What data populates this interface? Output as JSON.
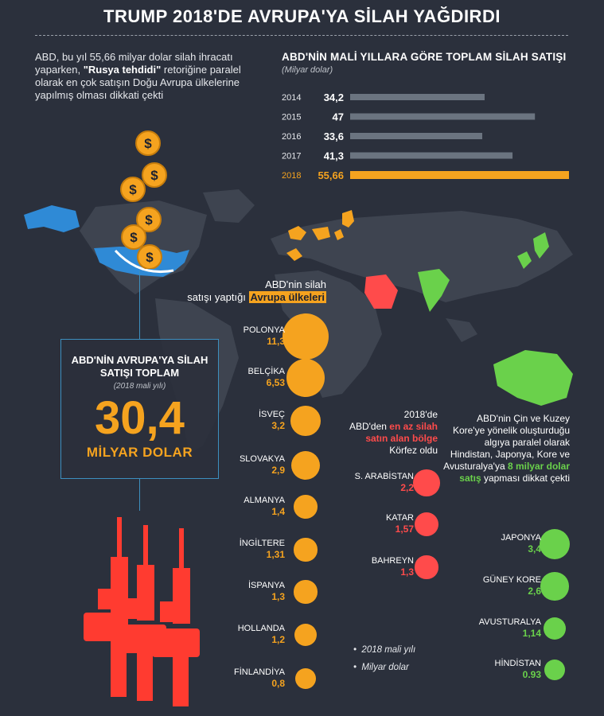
{
  "title": "TRUMP 2018'DE AVRUPA'YA SİLAH YAĞDIRDI",
  "intro": {
    "part1": "ABD, bu yıl 55,66 milyar dolar silah ihracatı yaparken, ",
    "bold": "\"Rusya tehdidi\"",
    "part2": " retoriğine paralel olarak en çok satışın Doğu Avrupa ülkelerine yapılmış olması dikkati çekti"
  },
  "colors": {
    "background": "#2b303c",
    "orange": "#f5a31f",
    "red": "#ff4b4b",
    "green": "#6ad14b",
    "grey_bar": "#6b7480",
    "blue": "#3d8fbf",
    "land": "#3e4450"
  },
  "total_box": {
    "heading": "ABD'NİN AVRUPA'YA SİLAH SATIŞI TOPLAM",
    "period": "(2018 mali yılı)",
    "value": "30,4",
    "unit": "MİLYAR DOLAR"
  },
  "europe_label": {
    "line1": "ABD'nin silah",
    "line2": "satışı yaptığı ",
    "highlight": "Avrupa ülkeleri"
  },
  "gulf_label": {
    "line1": "2018'de",
    "line2": "ABD'den ",
    "highlight": "en az silah satın alan bölge",
    "line3": "Körfez oldu"
  },
  "asia_label": {
    "part1": "ABD'nin Çin ve Kuzey Kore'ye yönelik oluşturduğu algıya paralel olarak Hindistan, Japonya, Kore ve Avusturalya'ya ",
    "highlight": "8 milyar dolar satış",
    "part2": " yapması dikkat çekti"
  },
  "notes": [
    "2018 mali yılı",
    "Milyar dolar"
  ],
  "chart_data": [
    {
      "type": "bar",
      "orientation": "horizontal",
      "title": "ABD'NİN MALİ YILLARA GÖRE TOPLAM SİLAH SATIŞI",
      "subtitle": "(Milyar dolar)",
      "categories": [
        "2014",
        "2015",
        "2016",
        "2017",
        "2018"
      ],
      "values": [
        34.2,
        47,
        33.6,
        41.3,
        55.66
      ],
      "value_labels": [
        "34,2",
        "47",
        "33,6",
        "41,3",
        "55,66"
      ],
      "highlight_index": 4,
      "xlim": [
        0,
        55.66
      ]
    },
    {
      "type": "scatter",
      "group": "europe",
      "categories": [
        "POLONYA",
        "BELÇİKA",
        "İSVEÇ",
        "SLOVAKYA",
        "ALMANYA",
        "İNGİLTERE",
        "İSPANYA",
        "HOLLANDA",
        "FİNLANDİYA"
      ],
      "values": [
        11.3,
        6.53,
        3.2,
        2.9,
        1.4,
        1.31,
        1.3,
        1.2,
        0.8
      ],
      "value_labels": [
        "11,3",
        "6,53",
        "3,2",
        "2,9",
        "1,4",
        "1,31",
        "1,3",
        "1,2",
        "0,8"
      ],
      "color": "#f5a31f"
    },
    {
      "type": "scatter",
      "group": "gulf",
      "categories": [
        "S. ARABİSTAN",
        "KATAR",
        "BAHREYN"
      ],
      "values": [
        2.2,
        1.57,
        1.3
      ],
      "value_labels": [
        "2,2",
        "1,57",
        "1,3"
      ],
      "color": "#ff4b4b"
    },
    {
      "type": "scatter",
      "group": "asia_pacific",
      "categories": [
        "JAPONYA",
        "GÜNEY KORE",
        "AVUSTURALYA",
        "HİNDİSTAN"
      ],
      "values": [
        3.4,
        2.6,
        1.14,
        0.93
      ],
      "value_labels": [
        "3,4",
        "2,6",
        "1,14",
        "0.93"
      ],
      "color": "#6ad14b"
    }
  ]
}
